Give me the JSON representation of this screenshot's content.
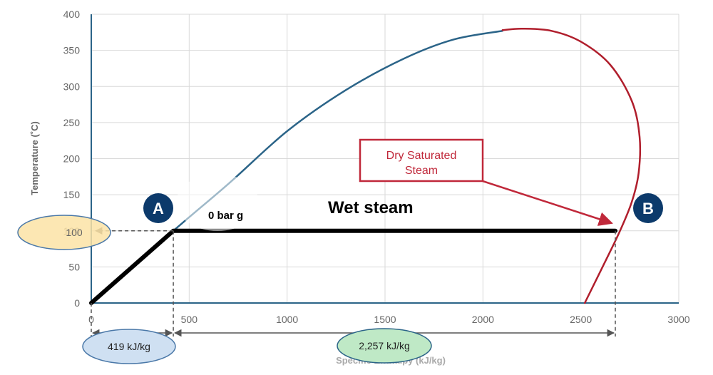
{
  "chart_data": {
    "type": "line",
    "title": "",
    "xlabel": "Specific Enthalpy (kJ/kg)",
    "ylabel": "Temperature (˚C)",
    "xlim": [
      0,
      3000
    ],
    "ylim": [
      0,
      400
    ],
    "x_ticks": [
      0,
      500,
      1000,
      1500,
      2000,
      2500,
      3000
    ],
    "y_ticks": [
      0,
      50,
      100,
      150,
      200,
      250,
      300,
      350,
      400
    ],
    "grid": true,
    "series": [
      {
        "color": "#2b6488",
        "x": [
          0,
          419,
          700,
          1000,
          1300,
          1600,
          1850,
          2100
        ],
        "y": [
          0,
          100,
          165,
          238,
          295,
          339,
          365,
          377
        ]
      },
      {
        "color": "#b01e2c",
        "x": [
          2100,
          2200,
          2350,
          2500,
          2650,
          2760,
          2800,
          2795,
          2760,
          2700,
          2620,
          2520
        ],
        "y": [
          378,
          380,
          377,
          362,
          330,
          280,
          230,
          180,
          140,
          100,
          55,
          0
        ]
      },
      {
        "color": "#000000",
        "x": [
          0,
          419,
          2676
        ],
        "y": [
          0,
          100,
          100
        ]
      }
    ],
    "annotations": {
      "point_a": {
        "label": "A",
        "x": 419,
        "y": 100
      },
      "point_b": {
        "label": "B",
        "x": 2676,
        "y": 100
      },
      "pressure_label": "0 bar g",
      "region_label": "Wet steam",
      "callout": {
        "line1": "Dry Saturated",
        "line2": "Steam"
      },
      "temperature_bubble": "100",
      "sensible_heat_label": "419 kJ/kg",
      "latent_heat_label": "2,257 kJ/kg"
    },
    "colors": {
      "marker": "#0c3a6b",
      "callout": "#c0283a",
      "temp_bubble_fill": "#fbe3a6",
      "sensible_bubble_fill": "#cfe0f2",
      "latent_bubble_fill": "#bfe9c6",
      "bubble_stroke": "#4a78a8",
      "latent_bubble_stroke": "#2b6488"
    }
  }
}
